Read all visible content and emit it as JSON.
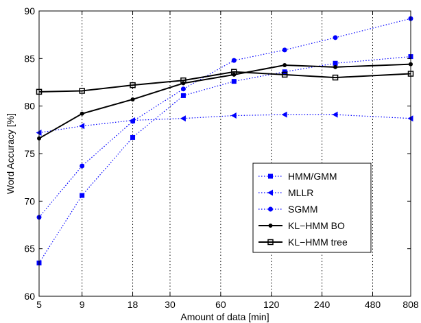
{
  "chart_data": {
    "type": "line",
    "title": "",
    "xlabel": "Amount of data [min]",
    "ylabel": "Word Accuracy [%]",
    "x_scale": "log",
    "xlim": [
      5,
      808
    ],
    "ylim": [
      60,
      90
    ],
    "x_ticks": [
      5,
      9,
      18,
      30,
      60,
      120,
      240,
      480,
      808
    ],
    "x_tick_labels": [
      "5",
      "9",
      "18",
      "30",
      "60",
      "120",
      "240",
      "480",
      "808"
    ],
    "y_ticks": [
      60,
      65,
      70,
      75,
      80,
      85,
      90
    ],
    "y_tick_labels": [
      "60",
      "65",
      "70",
      "75",
      "80",
      "85",
      "90"
    ],
    "grid": "vertical dotted",
    "legend_position": "lower-right",
    "x": [
      5,
      9,
      18,
      36,
      72,
      144,
      288,
      808
    ],
    "series": [
      {
        "name": "HMM/GMM",
        "color": "#0000ff",
        "style": "dotted",
        "marker": "square",
        "values": [
          63.5,
          70.6,
          76.7,
          81.1,
          82.6,
          83.6,
          84.5,
          85.2
        ]
      },
      {
        "name": "MLLR",
        "color": "#0000ff",
        "style": "dotted",
        "marker": "triangle-left",
        "values": [
          77.2,
          77.9,
          78.5,
          78.7,
          79.0,
          79.1,
          79.1,
          78.7
        ]
      },
      {
        "name": "SGMM",
        "color": "#0000ff",
        "style": "dotted",
        "marker": "circle",
        "values": [
          68.3,
          73.7,
          78.4,
          81.8,
          84.8,
          85.9,
          87.2,
          89.2
        ]
      },
      {
        "name": "KL−HMM BO",
        "color": "#000000",
        "style": "solid",
        "marker": "dot",
        "values": [
          76.6,
          79.2,
          80.7,
          82.4,
          83.3,
          84.3,
          84.1,
          84.4
        ]
      },
      {
        "name": "KL−HMM tree",
        "color": "#000000",
        "style": "solid",
        "marker": "square-open",
        "values": [
          81.5,
          81.6,
          82.2,
          82.7,
          83.6,
          83.3,
          83.0,
          83.4
        ]
      }
    ]
  }
}
